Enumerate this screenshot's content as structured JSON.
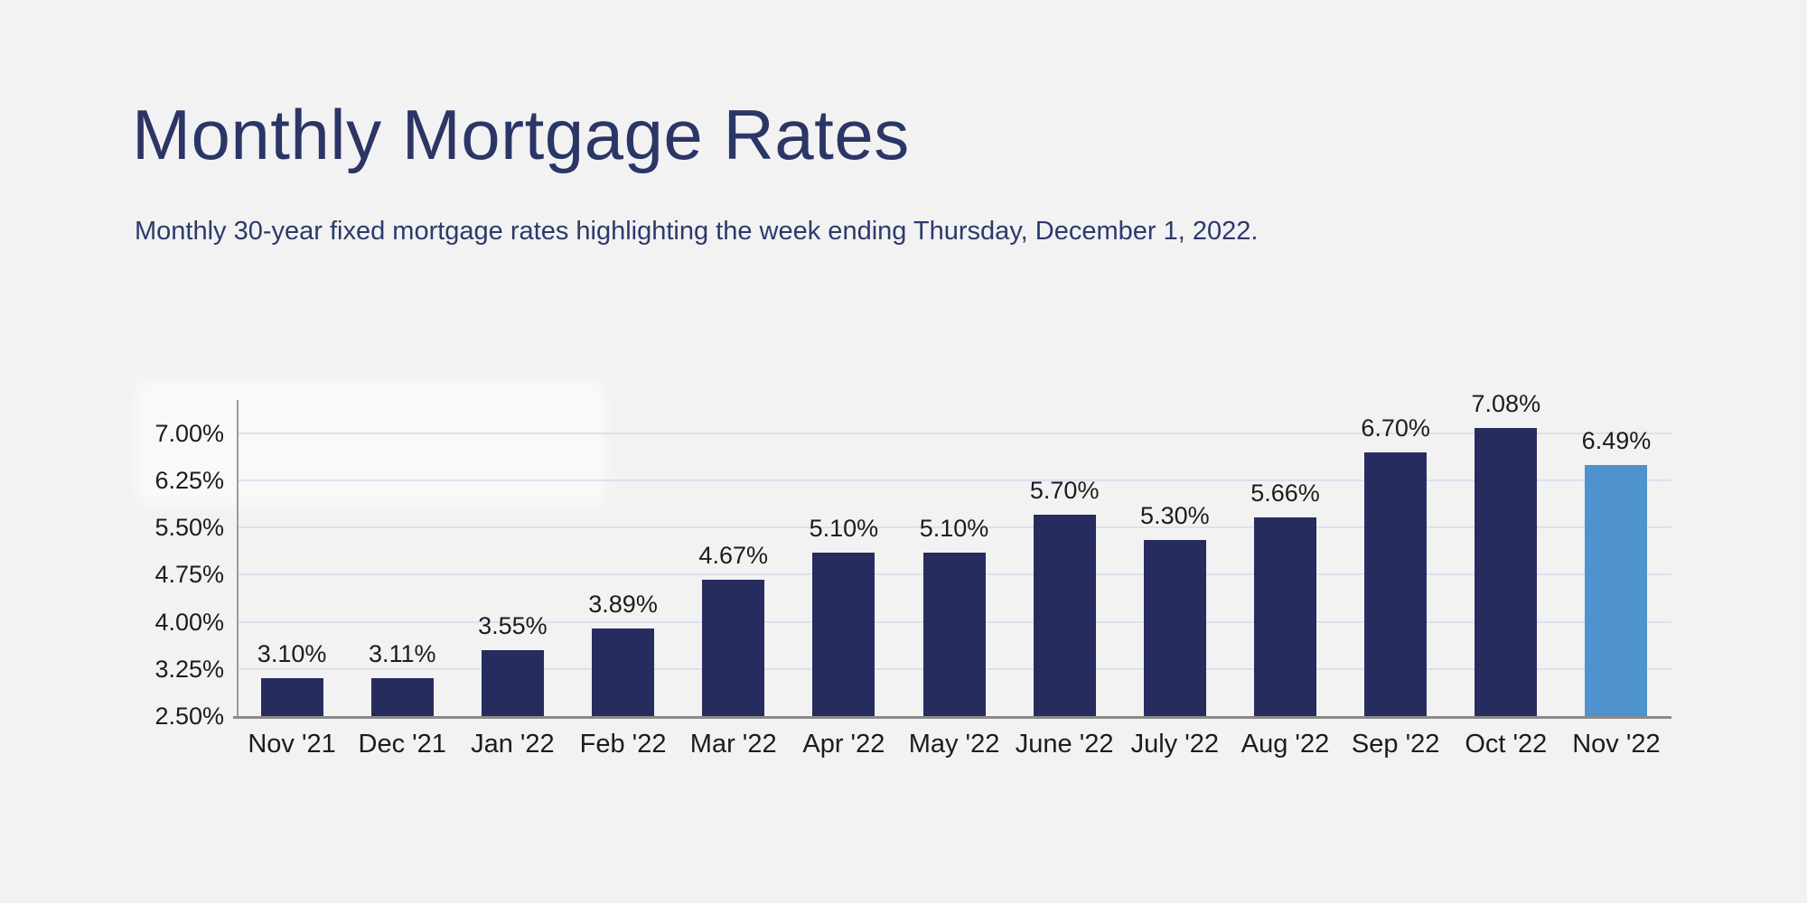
{
  "page": {
    "background_color": "#f2f2f2"
  },
  "header": {
    "title": "Monthly Mortgage Rates",
    "subtitle": "Monthly 30-year fixed mortgage rates highlighting the week ending Thursday, December 1, 2022.",
    "title_color": "#2b3566",
    "subtitle_color": "#2c3a6b"
  },
  "chart_data": {
    "type": "bar",
    "title": "Monthly Mortgage Rates",
    "subtitle": "Monthly 30-year fixed mortgage rates highlighting the week ending Thursday, December 1, 2022.",
    "categories": [
      "Nov '21",
      "Dec '21",
      "Jan '22",
      "Feb '22",
      "Mar '22",
      "Apr '22",
      "May '22",
      "June '22",
      "July '22",
      "Aug '22",
      "Sep '22",
      "Oct '22",
      "Nov '22"
    ],
    "values": [
      3.1,
      3.11,
      3.55,
      3.89,
      4.67,
      5.1,
      5.1,
      5.7,
      5.3,
      5.66,
      6.7,
      7.08,
      6.49
    ],
    "value_labels": [
      "3.10%",
      "3.11%",
      "3.55%",
      "3.89%",
      "4.67%",
      "5.10%",
      "5.10%",
      "5.70%",
      "5.30%",
      "5.66%",
      "6.70%",
      "7.08%",
      "6.49%"
    ],
    "highlight_index": 12,
    "bar_color": "#272c5f",
    "highlight_color": "#4e92ce",
    "xlabel": "",
    "ylabel": "",
    "y_axis": {
      "min": 2.5,
      "max": 7.53,
      "tick_values": [
        2.5,
        3.25,
        4.0,
        4.75,
        5.5,
        6.25,
        7.0
      ],
      "tick_labels": [
        "2.50%",
        "3.25%",
        "4.00%",
        "4.75%",
        "5.50%",
        "6.25%",
        "7.00%"
      ]
    },
    "grid": true,
    "gridline_color": "#dbe1f0",
    "axis_color": "#9b9b9b",
    "label_color": "#1c1c1c",
    "legend": "none"
  }
}
